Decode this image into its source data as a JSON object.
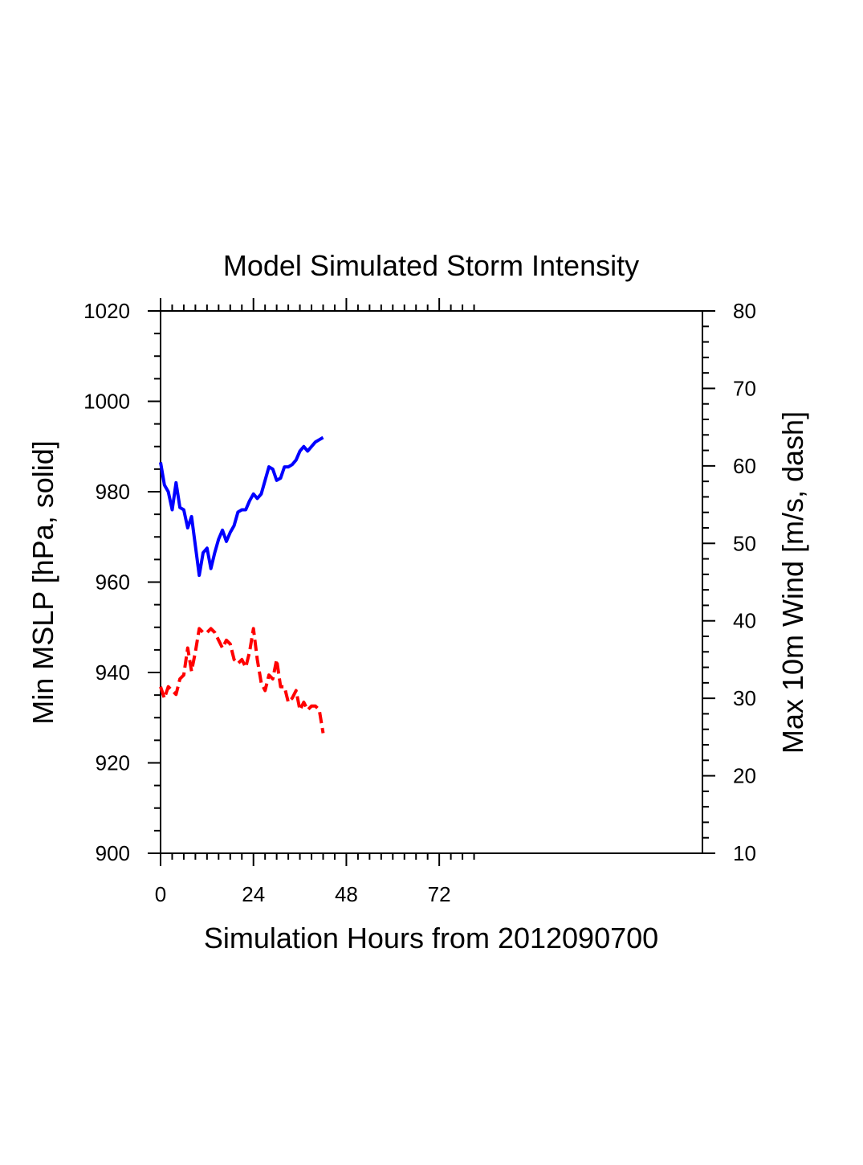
{
  "chart_data": {
    "type": "line",
    "title": "Model Simulated Storm Intensity",
    "xlabel": "Simulation Hours from 2012090700",
    "ylabel": "Min MSLP  [hPa, solid]",
    "y2label": "Max 10m Wind  [m/s, dash]",
    "xlim": [
      0,
      140
    ],
    "ylim": [
      900,
      1020
    ],
    "y2lim": [
      10,
      80
    ],
    "x_ticks": [
      0,
      24,
      48,
      72
    ],
    "y_ticks": [
      900,
      920,
      940,
      960,
      980,
      1000,
      1020
    ],
    "y2_ticks": [
      10,
      20,
      30,
      40,
      50,
      60,
      70,
      80
    ],
    "grid": false,
    "series": [
      {
        "axis": "left",
        "style": "solid",
        "color": "#0000ff",
        "x": [
          0,
          1,
          2,
          3,
          4,
          5,
          6,
          7,
          8,
          9,
          10,
          11,
          12,
          13,
          14,
          15,
          16,
          17,
          18,
          19,
          20,
          21,
          22,
          23,
          24,
          25,
          26,
          27,
          28,
          29,
          30,
          31,
          32,
          33,
          34,
          35,
          36,
          37,
          38,
          39,
          40,
          41,
          42
        ],
        "y": [
          986.5,
          981.5,
          980,
          976,
          982,
          976.5,
          976,
          972,
          974.5,
          968,
          961.5,
          966.5,
          967.5,
          963,
          966.5,
          969.5,
          971.5,
          969,
          971,
          972.5,
          975.5,
          976,
          976,
          978,
          979.5,
          978.5,
          979.5,
          982.5,
          985.5,
          985,
          982.5,
          983,
          985.5,
          985.5,
          986,
          987,
          989,
          990,
          989,
          990,
          991,
          991.5,
          992
        ]
      },
      {
        "axis": "right",
        "style": "dash",
        "color": "#ff0000",
        "x": [
          0,
          1,
          2,
          3,
          4,
          5,
          6,
          7,
          8,
          9,
          10,
          11,
          12,
          13,
          14,
          15,
          16,
          17,
          18,
          19,
          20,
          21,
          22,
          23,
          24,
          25,
          26,
          27,
          28,
          29,
          30,
          31,
          32,
          33,
          34,
          35,
          36,
          37,
          38,
          39,
          40,
          41,
          42
        ],
        "y": [
          31.5,
          30,
          31.5,
          31,
          30.5,
          32.5,
          33,
          36.5,
          33.5,
          36,
          39,
          38.5,
          38.5,
          39,
          38.5,
          37.5,
          36.5,
          37.5,
          37,
          35,
          34.5,
          35,
          34,
          36,
          39,
          35,
          32,
          31,
          33,
          32.5,
          35,
          31.5,
          31.5,
          29.5,
          30,
          31,
          28.5,
          29.5,
          28.5,
          29,
          29,
          28.5,
          25.5
        ]
      }
    ]
  }
}
